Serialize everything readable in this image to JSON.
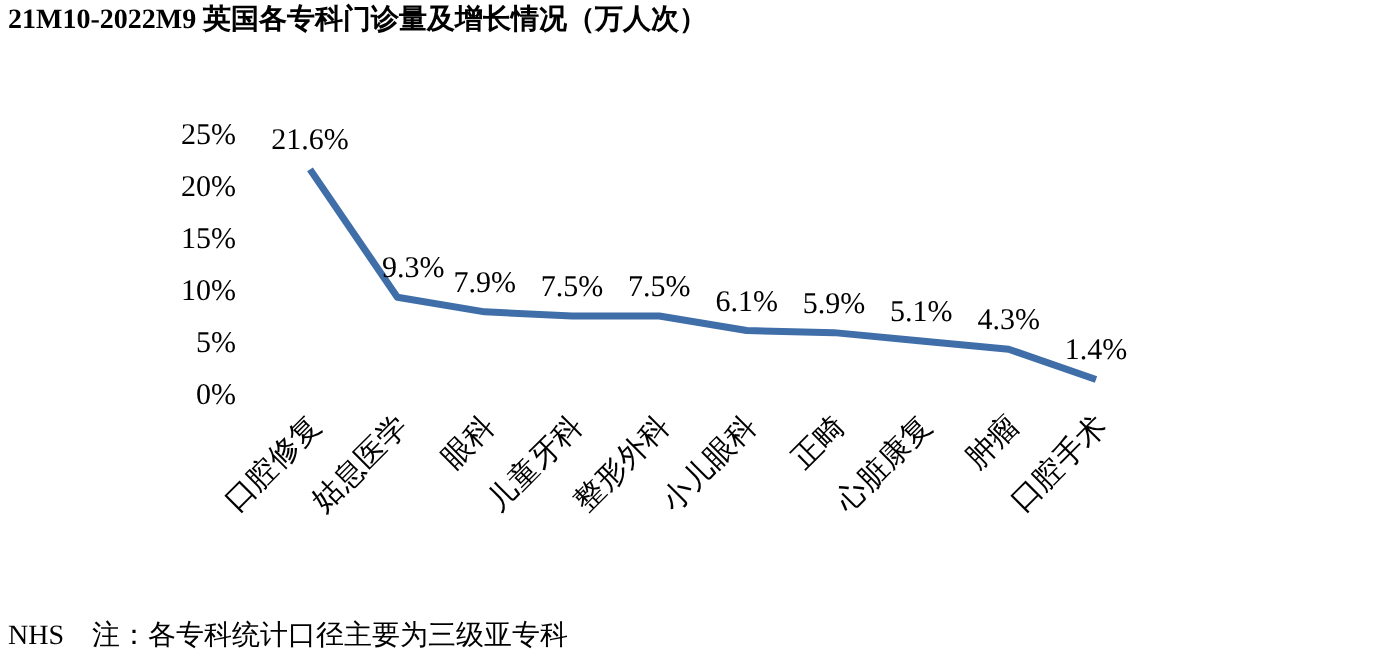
{
  "chart_data": {
    "type": "line",
    "title": "21M10-2022M9 英国各专科门诊量及增长情况（万人次）",
    "categories": [
      "口腔修复",
      "姑息医学",
      "眼科",
      "儿童牙科",
      "整形外科",
      "小儿眼科",
      "正畸",
      "心脏康复",
      "肿瘤",
      "口腔手术"
    ],
    "series": [
      {
        "color": "#3f6ea8",
        "values": [
          21.6,
          9.3,
          7.9,
          7.5,
          7.5,
          6.1,
          5.9,
          5.1,
          4.3,
          1.4
        ],
        "value_labels": [
          "21.6%",
          "9.3%",
          "7.9%",
          "7.5%",
          "7.5%",
          "6.1%",
          "5.9%",
          "5.1%",
          "4.3%",
          "1.4%"
        ]
      }
    ],
    "ylim": [
      0,
      25
    ],
    "yticks": [
      {
        "value": 0,
        "label": "0%"
      },
      {
        "value": 5,
        "label": "5%"
      },
      {
        "value": 10,
        "label": "10%"
      },
      {
        "value": 15,
        "label": "15%"
      },
      {
        "value": 20,
        "label": "20%"
      },
      {
        "value": 25,
        "label": "25%"
      }
    ],
    "grid": false,
    "marker": "none",
    "line_style": "solid",
    "annotations": [
      "NHS　注：各专科统计口径主要为三级亚专科"
    ]
  }
}
